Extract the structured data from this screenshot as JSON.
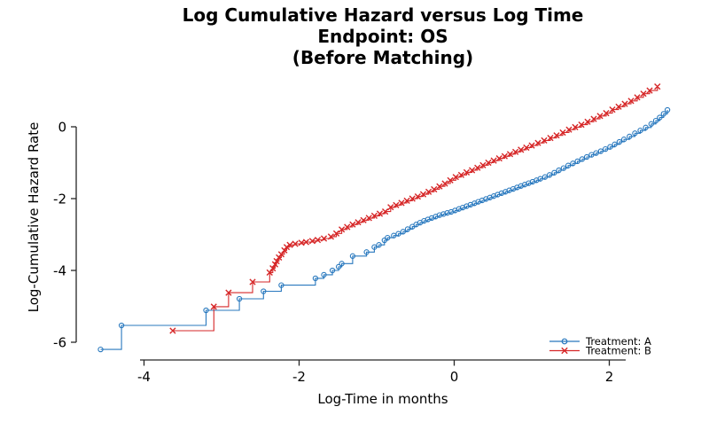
{
  "figure": {
    "title_line1": "Log Cumulative Hazard versus Log Time",
    "title_line2": "Endpoint: OS",
    "title_line3": "(Before Matching)"
  },
  "chart_data": {
    "type": "line",
    "step_mode": "post",
    "title": "Log Cumulative Hazard versus Log Time / Endpoint: OS / (Before Matching)",
    "xlabel": "Log-Time in months",
    "ylabel": "Log-Cumulative Hazard Rate",
    "x_ticks": [
      -4,
      -2,
      0,
      2
    ],
    "y_ticks": [
      0,
      -2,
      -4,
      -6
    ],
    "xlim": [
      -4.9,
      2.85
    ],
    "ylim": [
      -6.5,
      1.3
    ],
    "grid": false,
    "legend_position": "lower right",
    "axis_color": "#262626",
    "series": [
      {
        "name": "Treatment: A",
        "marker": "circle",
        "color": "#2878be",
        "points": [
          [
            -4.56,
            -6.2
          ],
          [
            -4.29,
            -5.53
          ],
          [
            -3.2,
            -5.11
          ],
          [
            -2.77,
            -4.79
          ],
          [
            -2.46,
            -4.58
          ],
          [
            -2.23,
            -4.41
          ],
          [
            -1.79,
            -4.22
          ],
          [
            -1.68,
            -4.12
          ],
          [
            -1.57,
            -4.0
          ],
          [
            -1.49,
            -3.9
          ],
          [
            -1.45,
            -3.81
          ],
          [
            -1.31,
            -3.6
          ],
          [
            -1.13,
            -3.49
          ],
          [
            -1.03,
            -3.35
          ],
          [
            -0.97,
            -3.29
          ],
          [
            -0.9,
            -3.16
          ],
          [
            -0.86,
            -3.09
          ],
          [
            -0.78,
            -3.03
          ],
          [
            -0.72,
            -2.98
          ],
          [
            -0.66,
            -2.92
          ],
          [
            -0.6,
            -2.85
          ],
          [
            -0.54,
            -2.78
          ],
          [
            -0.49,
            -2.72
          ],
          [
            -0.44,
            -2.67
          ],
          [
            -0.39,
            -2.62
          ],
          [
            -0.34,
            -2.58
          ],
          [
            -0.29,
            -2.54
          ],
          [
            -0.24,
            -2.5
          ],
          [
            -0.19,
            -2.46
          ],
          [
            -0.14,
            -2.43
          ],
          [
            -0.09,
            -2.4
          ],
          [
            -0.04,
            -2.37
          ],
          [
            0.01,
            -2.33
          ],
          [
            0.06,
            -2.29
          ],
          [
            0.11,
            -2.25
          ],
          [
            0.16,
            -2.21
          ],
          [
            0.21,
            -2.17
          ],
          [
            0.26,
            -2.13
          ],
          [
            0.31,
            -2.09
          ],
          [
            0.36,
            -2.05
          ],
          [
            0.41,
            -2.01
          ],
          [
            0.46,
            -1.97
          ],
          [
            0.51,
            -1.93
          ],
          [
            0.56,
            -1.89
          ],
          [
            0.61,
            -1.85
          ],
          [
            0.66,
            -1.81
          ],
          [
            0.71,
            -1.77
          ],
          [
            0.76,
            -1.73
          ],
          [
            0.81,
            -1.69
          ],
          [
            0.86,
            -1.65
          ],
          [
            0.91,
            -1.61
          ],
          [
            0.96,
            -1.57
          ],
          [
            1.01,
            -1.53
          ],
          [
            1.06,
            -1.49
          ],
          [
            1.11,
            -1.45
          ],
          [
            1.17,
            -1.4
          ],
          [
            1.23,
            -1.34
          ],
          [
            1.29,
            -1.28
          ],
          [
            1.35,
            -1.21
          ],
          [
            1.41,
            -1.15
          ],
          [
            1.47,
            -1.08
          ],
          [
            1.53,
            -1.02
          ],
          [
            1.59,
            -0.96
          ],
          [
            1.65,
            -0.9
          ],
          [
            1.71,
            -0.84
          ],
          [
            1.77,
            -0.78
          ],
          [
            1.83,
            -0.73
          ],
          [
            1.89,
            -0.68
          ],
          [
            1.95,
            -0.62
          ],
          [
            2.01,
            -0.56
          ],
          [
            2.07,
            -0.49
          ],
          [
            2.13,
            -0.42
          ],
          [
            2.19,
            -0.35
          ],
          [
            2.26,
            -0.27
          ],
          [
            2.33,
            -0.18
          ],
          [
            2.4,
            -0.1
          ],
          [
            2.47,
            -0.02
          ],
          [
            2.54,
            0.08
          ],
          [
            2.6,
            0.17
          ],
          [
            2.65,
            0.26
          ],
          [
            2.7,
            0.36
          ],
          [
            2.75,
            0.47
          ]
        ]
      },
      {
        "name": "Treatment: B",
        "marker": "x",
        "color": "#d62728",
        "points": [
          [
            -3.63,
            -5.68
          ],
          [
            -3.1,
            -5.01
          ],
          [
            -2.91,
            -4.62
          ],
          [
            -2.6,
            -4.32
          ],
          [
            -2.38,
            -4.06
          ],
          [
            -2.34,
            -3.94
          ],
          [
            -2.31,
            -3.83
          ],
          [
            -2.29,
            -3.74
          ],
          [
            -2.26,
            -3.64
          ],
          [
            -2.23,
            -3.55
          ],
          [
            -2.19,
            -3.44
          ],
          [
            -2.16,
            -3.35
          ],
          [
            -2.12,
            -3.29
          ],
          [
            -2.05,
            -3.26
          ],
          [
            -1.97,
            -3.23
          ],
          [
            -1.91,
            -3.21
          ],
          [
            -1.83,
            -3.18
          ],
          [
            -1.76,
            -3.15
          ],
          [
            -1.68,
            -3.11
          ],
          [
            -1.59,
            -3.06
          ],
          [
            -1.52,
            -2.97
          ],
          [
            -1.45,
            -2.86
          ],
          [
            -1.38,
            -2.79
          ],
          [
            -1.31,
            -2.72
          ],
          [
            -1.24,
            -2.66
          ],
          [
            -1.17,
            -2.6
          ],
          [
            -1.1,
            -2.54
          ],
          [
            -1.03,
            -2.48
          ],
          [
            -0.96,
            -2.42
          ],
          [
            -0.89,
            -2.36
          ],
          [
            -0.82,
            -2.24
          ],
          [
            -0.75,
            -2.18
          ],
          [
            -0.68,
            -2.12
          ],
          [
            -0.61,
            -2.06
          ],
          [
            -0.54,
            -2.0
          ],
          [
            -0.47,
            -1.94
          ],
          [
            -0.4,
            -1.88
          ],
          [
            -0.33,
            -1.81
          ],
          [
            -0.26,
            -1.74
          ],
          [
            -0.19,
            -1.66
          ],
          [
            -0.12,
            -1.58
          ],
          [
            -0.05,
            -1.49
          ],
          [
            0.02,
            -1.4
          ],
          [
            0.09,
            -1.34
          ],
          [
            0.16,
            -1.27
          ],
          [
            0.23,
            -1.21
          ],
          [
            0.3,
            -1.14
          ],
          [
            0.37,
            -1.07
          ],
          [
            0.44,
            -1.0
          ],
          [
            0.51,
            -0.94
          ],
          [
            0.58,
            -0.88
          ],
          [
            0.65,
            -0.82
          ],
          [
            0.72,
            -0.76
          ],
          [
            0.79,
            -0.7
          ],
          [
            0.86,
            -0.64
          ],
          [
            0.93,
            -0.58
          ],
          [
            1.0,
            -0.52
          ],
          [
            1.08,
            -0.45
          ],
          [
            1.16,
            -0.38
          ],
          [
            1.24,
            -0.31
          ],
          [
            1.32,
            -0.24
          ],
          [
            1.4,
            -0.16
          ],
          [
            1.48,
            -0.08
          ],
          [
            1.56,
            -0.01
          ],
          [
            1.64,
            0.06
          ],
          [
            1.72,
            0.14
          ],
          [
            1.8,
            0.22
          ],
          [
            1.88,
            0.3
          ],
          [
            1.96,
            0.38
          ],
          [
            2.04,
            0.48
          ],
          [
            2.12,
            0.56
          ],
          [
            2.2,
            0.64
          ],
          [
            2.28,
            0.72
          ],
          [
            2.36,
            0.82
          ],
          [
            2.44,
            0.92
          ],
          [
            2.52,
            1.01
          ],
          [
            2.62,
            1.12
          ]
        ]
      }
    ]
  }
}
